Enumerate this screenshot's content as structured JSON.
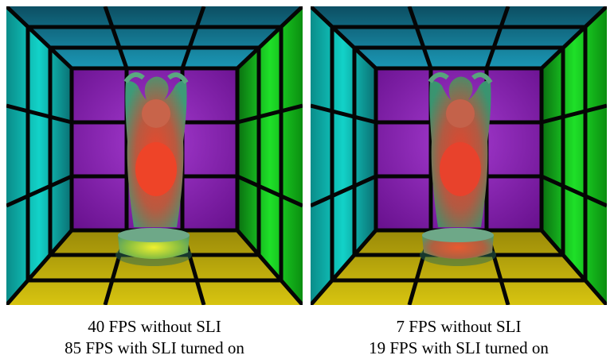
{
  "panels": [
    {
      "id": "left",
      "caption_line1": "40 FPS without SLI",
      "caption_line2": "85 FPS with SLI turned on",
      "colors": {
        "ceiling": "#0f5c6e",
        "left_wall": "#0fb8b0",
        "right_wall": "#12c21a",
        "back_wall": "#8a1fb0",
        "floor": "#b8a80a",
        "statue_top": "#3fa07a",
        "statue_core": "#e2452a",
        "base_glow": "#d8e020"
      }
    },
    {
      "id": "right",
      "caption_line1": "7 FPS without SLI",
      "caption_line2": "19 FPS with SLI turned on",
      "colors": {
        "ceiling": "#0f5c6e",
        "left_wall": "#0fb8b0",
        "right_wall": "#12c21a",
        "back_wall": "#8a1fb0",
        "floor": "#b8a80a",
        "statue_top": "#3d9a70",
        "statue_core": "#d8452e",
        "base_glow": "#c05a30"
      }
    }
  ]
}
